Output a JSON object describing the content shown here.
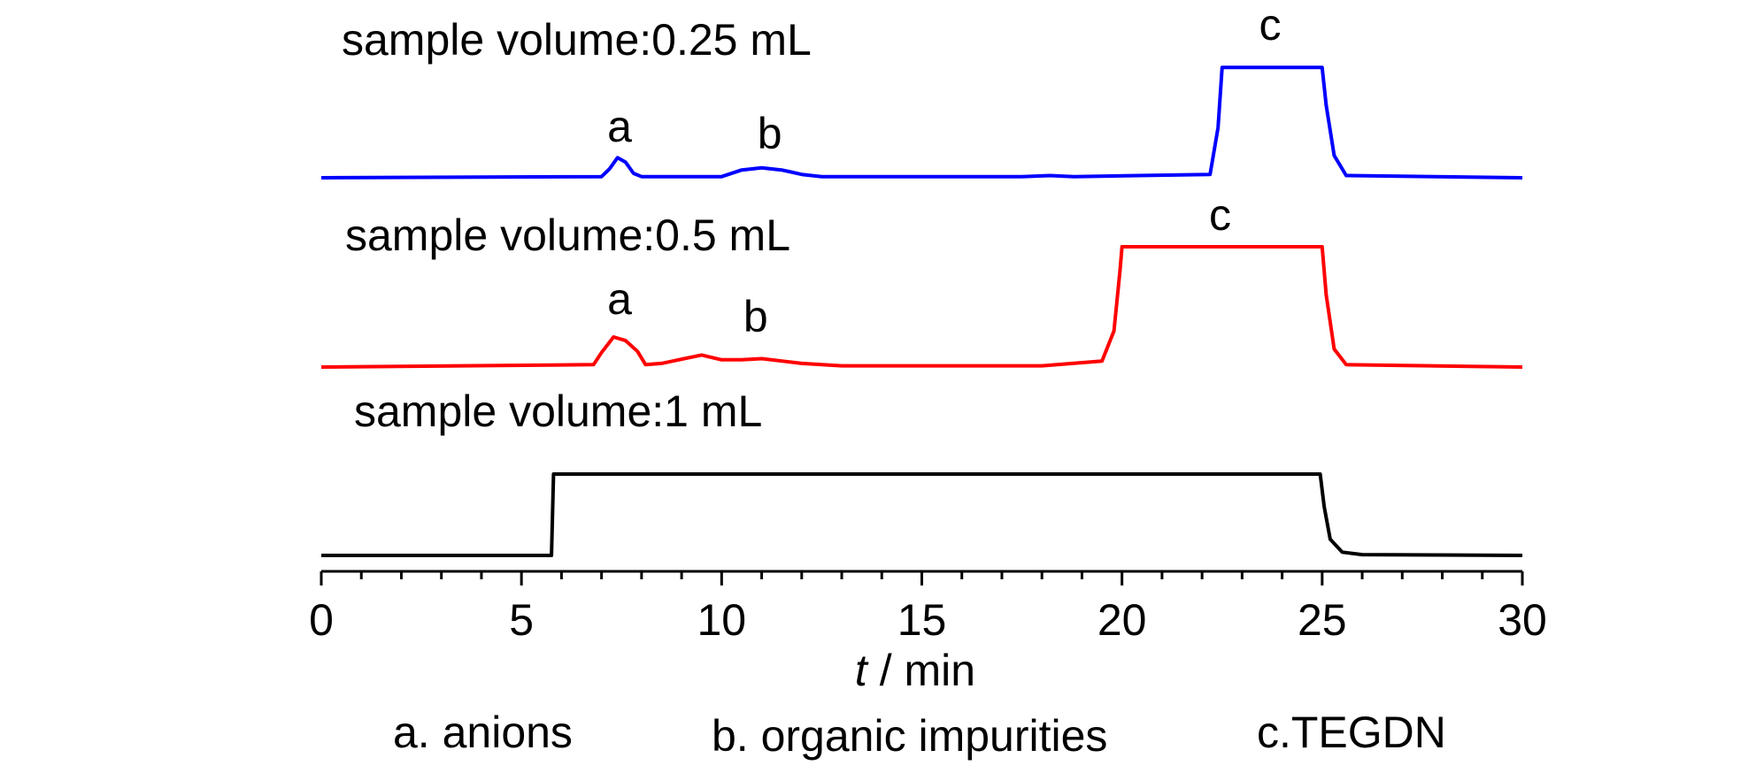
{
  "chart_data": {
    "type": "line",
    "xlabel_italic": "t",
    "xlabel_rest": " / min",
    "xlim": [
      0,
      30
    ],
    "xticks": [
      0,
      5,
      10,
      15,
      20,
      25,
      30
    ],
    "xtick_labels": [
      "0",
      "5",
      "10",
      "15",
      "20",
      "25",
      "30"
    ],
    "series": [
      {
        "name": "sample volume:0.25 mL",
        "color": "#0000ff",
        "x": [
          0,
          7.0,
          7.2,
          7.4,
          7.6,
          7.8,
          8.0,
          10.0,
          10.5,
          11.0,
          11.5,
          12.0,
          12.5,
          17.5,
          18.2,
          18.8,
          22.2,
          22.4,
          22.5,
          25.0,
          25.1,
          25.3,
          25.6,
          30
        ],
        "y": [
          0,
          0.01,
          0.08,
          0.18,
          0.14,
          0.04,
          0.01,
          0.01,
          0.07,
          0.09,
          0.07,
          0.03,
          0.01,
          0.01,
          0.02,
          0.01,
          0.03,
          0.45,
          0.99,
          0.99,
          0.65,
          0.2,
          0.02,
          0
        ]
      },
      {
        "name": "sample volume:0.5 mL",
        "color": "#ff0000",
        "x": [
          0,
          6.8,
          7.0,
          7.3,
          7.6,
          7.9,
          8.1,
          8.5,
          9.5,
          10.0,
          10.5,
          11.0,
          11.5,
          12.0,
          13.0,
          18.0,
          19.5,
          19.8,
          19.95,
          20.0,
          25.0,
          25.1,
          25.3,
          25.6,
          30
        ],
        "y": [
          0,
          0.02,
          0.12,
          0.25,
          0.22,
          0.13,
          0.02,
          0.03,
          0.1,
          0.06,
          0.06,
          0.07,
          0.05,
          0.03,
          0.01,
          0.01,
          0.05,
          0.3,
          0.8,
          1.0,
          1.0,
          0.6,
          0.15,
          0.02,
          0
        ]
      },
      {
        "name": "sample volume:1 mL",
        "color": "#000000",
        "x": [
          0,
          5.75,
          5.8,
          24.95,
          25.05,
          25.2,
          25.5,
          26.0,
          30
        ],
        "y": [
          0,
          0,
          1.0,
          1.0,
          0.6,
          0.2,
          0.04,
          0.01,
          0
        ]
      }
    ],
    "annotations": [
      {
        "series": 0,
        "text": "a",
        "x": 7.45
      },
      {
        "series": 0,
        "text": "b",
        "x": 11.2
      },
      {
        "series": 0,
        "text": "c",
        "x": 23.7
      },
      {
        "series": 1,
        "text": "a",
        "x": 7.45
      },
      {
        "series": 1,
        "text": "b",
        "x": 10.85
      },
      {
        "series": 1,
        "text": "c",
        "x": 22.45
      }
    ],
    "legend_notes": [
      "a. anions",
      "b. organic impurities",
      "c.TEGDN"
    ]
  }
}
